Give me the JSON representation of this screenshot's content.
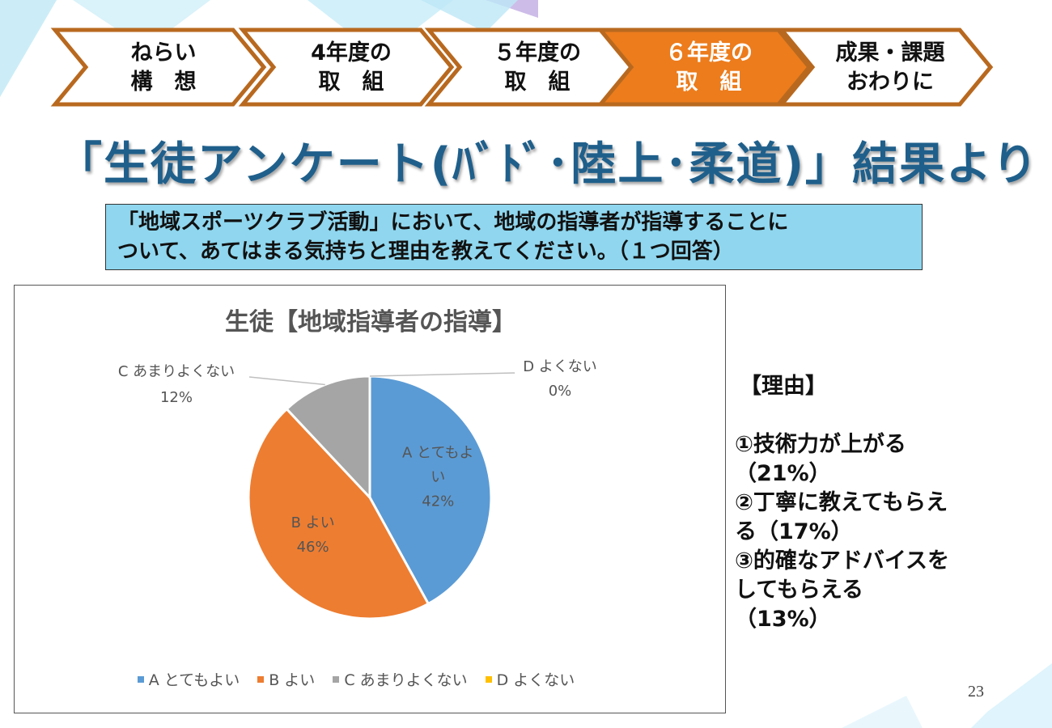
{
  "steps": [
    {
      "line1": "ねらい",
      "line2": "構　想",
      "active": false
    },
    {
      "line1": "4年度の",
      "line2": "取　組",
      "active": false
    },
    {
      "line1": "５年度の",
      "line2": "取　組",
      "active": false
    },
    {
      "line1": "６年度の",
      "line2": "取　組",
      "active": true
    },
    {
      "line1": "成果・課題",
      "line2": "おわりに",
      "active": false
    }
  ],
  "title": "「生徒アンケート(ﾊﾞﾄﾞ･陸上･柔道)」結果より",
  "question": {
    "line1": "「地域スポーツクラブ活動」において、地域の指導者が指導することに",
    "line2": "ついて、あてはまる気持ちと理由を教えてください。（１つ回答）"
  },
  "colors": {
    "active_step": "#ec7c1c",
    "step_border": "#b8691f",
    "title": "#1f5f8b",
    "question_bg": "#8fd6ee"
  },
  "chart_data": {
    "type": "pie",
    "title": "生徒【地域指導者の指導】",
    "slices": [
      {
        "name": "A とてもよい",
        "label_lines": [
          "A とてもよ",
          "い"
        ],
        "value": 42,
        "pct": "42%",
        "color": "#5b9bd5"
      },
      {
        "name": "B よい",
        "label_lines": [
          "B よい"
        ],
        "value": 46,
        "pct": "46%",
        "color": "#ed7d31"
      },
      {
        "name": "C あまりよくない",
        "label_lines": [
          "C あまりよくない"
        ],
        "value": 12,
        "pct": "12%",
        "color": "#a5a5a5"
      },
      {
        "name": "D よくない",
        "label_lines": [
          "D よくない"
        ],
        "value": 0,
        "pct": "0%",
        "color": "#ffc000"
      }
    ],
    "legend_position": "bottom"
  },
  "reasons": {
    "heading": "【理由】",
    "lines": [
      "①技術力が上がる",
      "（21%）",
      "②丁寧に教えてもらえ",
      "る（17%）",
      "③的確なアドバイスを",
      "してもらえる",
      "（13%）"
    ]
  },
  "page_number": "23"
}
